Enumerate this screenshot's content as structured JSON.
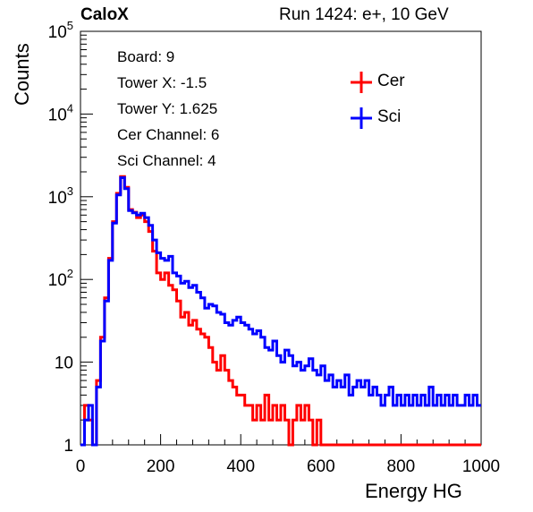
{
  "header": {
    "collaboration": "CaloX",
    "run_info": "Run 1424: e+, 10 GeV"
  },
  "info_box": {
    "lines": [
      "Board: 9",
      "Tower X: -1.5",
      "Tower Y: 1.625",
      "Cer Channel: 6",
      "Sci Channel: 4"
    ]
  },
  "chart_data": {
    "type": "line",
    "subtype": "histogram-step",
    "xlabel": "Energy HG",
    "ylabel": "Counts",
    "xlim": [
      0,
      1000
    ],
    "ylim": [
      1,
      100000
    ],
    "yscale": "log",
    "x_ticks": [
      "0",
      "200",
      "400",
      "600",
      "800",
      "1000"
    ],
    "y_ticks": [
      "1",
      "10",
      "10^2",
      "10^3",
      "10^4",
      "10^5"
    ],
    "grid": false,
    "legend": "top-right",
    "x": [
      5,
      15,
      25,
      35,
      45,
      55,
      65,
      75,
      85,
      95,
      105,
      115,
      125,
      135,
      145,
      155,
      165,
      175,
      185,
      195,
      205,
      215,
      225,
      235,
      245,
      255,
      265,
      275,
      285,
      295,
      305,
      315,
      325,
      335,
      345,
      355,
      365,
      375,
      385,
      395,
      405,
      415,
      425,
      435,
      445,
      455,
      465,
      475,
      485,
      495,
      505,
      515,
      525,
      535,
      545,
      555,
      565,
      575,
      585,
      595,
      605,
      615,
      625,
      635,
      645,
      655,
      665,
      675,
      685,
      695,
      705,
      715,
      725,
      735,
      745,
      755,
      765,
      775,
      785,
      795,
      805,
      815,
      825,
      835,
      845,
      855,
      865,
      875,
      885,
      895,
      905,
      915,
      925,
      935,
      945,
      955,
      965,
      975,
      985,
      995
    ],
    "series": [
      {
        "name": "Cer",
        "color": "#ff0000",
        "values": [
          1,
          3,
          2,
          1,
          6,
          20,
          60,
          180,
          500,
          1100,
          1750,
          1300,
          700,
          650,
          560,
          600,
          500,
          380,
          220,
          120,
          100,
          120,
          85,
          75,
          55,
          35,
          40,
          28,
          32,
          25,
          22,
          20,
          15,
          10,
          8,
          12,
          8,
          6,
          5,
          4,
          4,
          3,
          3,
          2,
          3,
          2,
          4,
          2,
          3,
          2,
          3,
          2,
          1,
          2,
          3,
          2,
          3,
          2,
          1,
          2,
          1,
          1,
          1,
          1,
          1,
          1,
          1,
          1,
          1,
          1,
          1,
          1,
          1,
          1,
          1,
          1,
          1,
          1,
          1,
          1,
          1,
          1,
          1,
          1,
          1,
          1,
          1,
          1,
          1,
          1,
          1,
          1,
          1,
          1,
          1,
          1,
          1,
          1,
          1,
          1
        ]
      },
      {
        "name": "Sci",
        "color": "#0000ff",
        "values": [
          1,
          2,
          3,
          1,
          5,
          18,
          55,
          170,
          480,
          1050,
          1700,
          1250,
          680,
          640,
          600,
          630,
          560,
          450,
          300,
          210,
          180,
          170,
          190,
          120,
          110,
          90,
          95,
          80,
          85,
          70,
          60,
          45,
          50,
          48,
          40,
          38,
          30,
          28,
          32,
          35,
          30,
          28,
          25,
          22,
          24,
          20,
          15,
          14,
          18,
          12,
          10,
          14,
          12,
          9,
          10,
          8,
          9,
          11,
          8,
          7,
          9,
          6,
          7,
          5,
          6,
          5,
          7,
          4,
          5,
          6,
          5,
          6,
          4,
          5,
          4,
          3,
          4,
          5,
          3,
          4,
          3,
          4,
          3,
          4,
          3,
          4,
          3,
          5,
          3,
          4,
          3,
          4,
          3,
          4,
          3,
          3,
          4,
          3,
          4,
          3
        ]
      }
    ]
  }
}
